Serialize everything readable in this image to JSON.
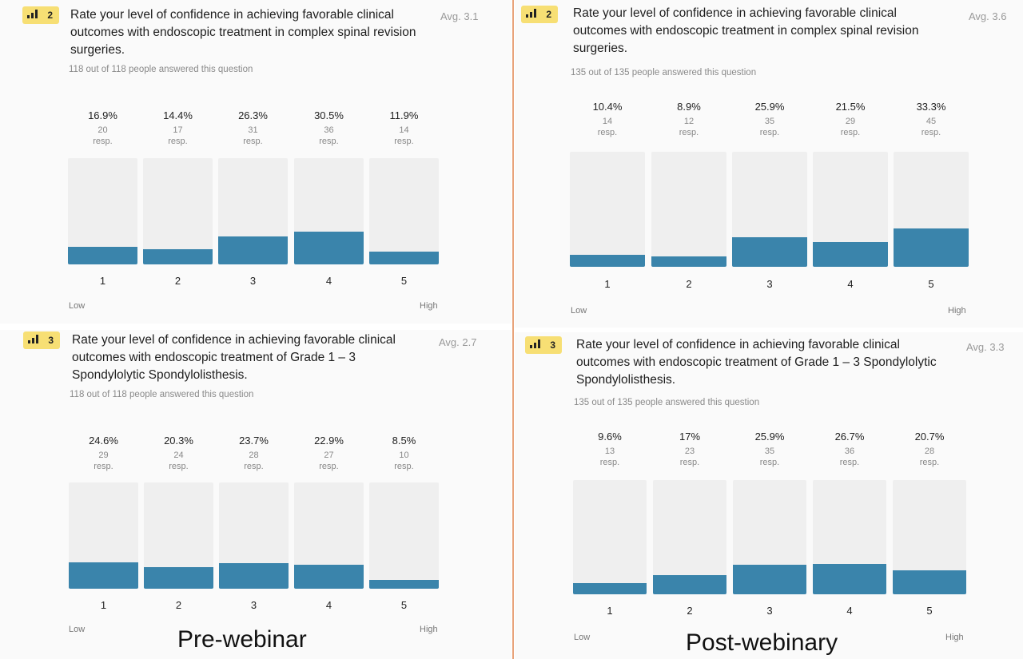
{
  "captions": {
    "pre": "Pre-webinar",
    "post": "Post-webinary"
  },
  "colors": {
    "bar": "#3a84ab",
    "track": "#efefef",
    "badge": "#f7df74",
    "divider": "#e8a37a"
  },
  "icons": {
    "badge_icon": "bar-chart-icon"
  },
  "panels": [
    {
      "badge_num": "2",
      "title": "Rate your level of confidence in achieving favorable clinical outcomes with endoscopic treatment in complex spinal revision surgeries.",
      "avg": "Avg. 3.1",
      "answered": "118 out of 118 people answered this question",
      "low": "Low",
      "high": "High"
    },
    {
      "badge_num": "2",
      "title": "Rate your level of confidence in achieving favorable clinical outcomes with endoscopic treatment in complex spinal revision surgeries.",
      "avg": "Avg. 3.6",
      "answered": "135 out of 135 people answered this question",
      "low": "Low",
      "high": "High"
    },
    {
      "badge_num": "3",
      "title": "Rate your level of confidence in achieving favorable clinical outcomes with endoscopic treatment of Grade 1 – 3 Spondylolytic Spondylolisthesis.",
      "avg": "Avg. 2.7",
      "answered": "118 out of 118 people answered this question",
      "low": "Low",
      "high": "High"
    },
    {
      "badge_num": "3",
      "title": "Rate your level of confidence in achieving favorable clinical outcomes with endoscopic treatment of Grade 1 – 3 Spondylolytic Spondylolisthesis.",
      "avg": "Avg. 3.3",
      "answered": "135 out of 135 people answered this question",
      "low": "Low",
      "high": "High"
    }
  ],
  "chart_data": [
    {
      "type": "bar",
      "categories": [
        "1",
        "2",
        "3",
        "4",
        "5"
      ],
      "percent_labels": [
        "16.9%",
        "14.4%",
        "26.3%",
        "30.5%",
        "11.9%"
      ],
      "values": [
        16.9,
        14.4,
        26.3,
        30.5,
        11.9
      ],
      "responses": [
        20,
        17,
        31,
        36,
        14
      ],
      "resp_label": "resp.",
      "ylim": [
        0,
        100
      ]
    },
    {
      "type": "bar",
      "categories": [
        "1",
        "2",
        "3",
        "4",
        "5"
      ],
      "percent_labels": [
        "10.4%",
        "8.9%",
        "25.9%",
        "21.5%",
        "33.3%"
      ],
      "values": [
        10.4,
        8.9,
        25.9,
        21.5,
        33.3
      ],
      "responses": [
        14,
        12,
        35,
        29,
        45
      ],
      "resp_label": "resp.",
      "ylim": [
        0,
        100
      ]
    },
    {
      "type": "bar",
      "categories": [
        "1",
        "2",
        "3",
        "4",
        "5"
      ],
      "percent_labels": [
        "24.6%",
        "20.3%",
        "23.7%",
        "22.9%",
        "8.5%"
      ],
      "values": [
        24.6,
        20.3,
        23.7,
        22.9,
        8.5
      ],
      "responses": [
        29,
        24,
        28,
        27,
        10
      ],
      "resp_label": "resp.",
      "ylim": [
        0,
        100
      ]
    },
    {
      "type": "bar",
      "categories": [
        "1",
        "2",
        "3",
        "4",
        "5"
      ],
      "percent_labels": [
        "9.6%",
        "17%",
        "25.9%",
        "26.7%",
        "20.7%"
      ],
      "values": [
        9.6,
        17,
        25.9,
        26.7,
        20.7
      ],
      "responses": [
        13,
        23,
        35,
        36,
        28
      ],
      "resp_label": "resp.",
      "ylim": [
        0,
        100
      ]
    }
  ]
}
